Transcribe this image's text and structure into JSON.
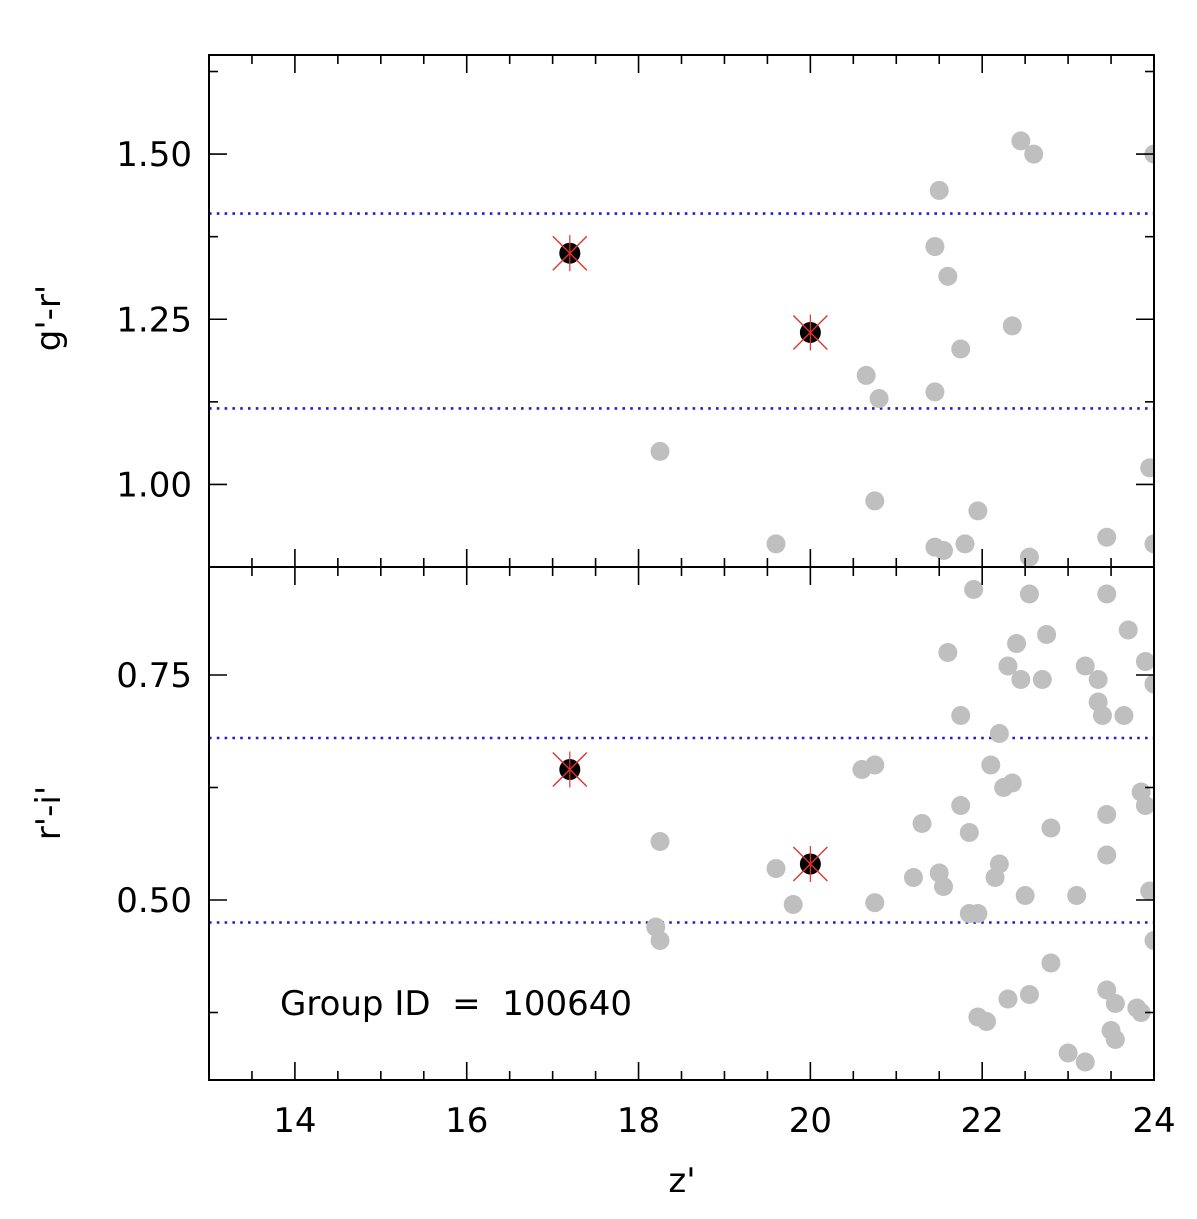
{
  "chart_data": [
    {
      "type": "scatter",
      "panel": "top",
      "ylabel": "g'-r'",
      "xlim": [
        13,
        24
      ],
      "ylim": [
        0.875,
        1.65
      ],
      "yticks": [
        1.0,
        1.25,
        1.5
      ],
      "ytick_labels": [
        "1.00",
        "1.25",
        "1.50"
      ],
      "hlines": [
        1.41,
        1.115
      ],
      "hline_color": "#1f1fd0",
      "background_color": "#bfbfbf",
      "member_color": "#000000",
      "cross_color": "#e8302a",
      "background_points": [
        [
          18.25,
          1.05
        ],
        [
          19.6,
          0.91
        ],
        [
          20.65,
          1.165
        ],
        [
          20.75,
          0.975
        ],
        [
          20.8,
          1.13
        ],
        [
          21.45,
          1.36
        ],
        [
          21.45,
          1.14
        ],
        [
          21.45,
          0.905
        ],
        [
          21.5,
          1.445
        ],
        [
          21.55,
          0.9
        ],
        [
          21.6,
          1.315
        ],
        [
          21.75,
          1.205
        ],
        [
          21.8,
          0.91
        ],
        [
          21.95,
          0.96
        ],
        [
          22.35,
          1.24
        ],
        [
          22.45,
          1.52
        ],
        [
          22.55,
          0.89
        ],
        [
          22.6,
          1.5
        ],
        [
          23.45,
          0.92
        ],
        [
          23.95,
          1.025
        ],
        [
          24.0,
          1.5
        ],
        [
          24.0,
          0.91
        ]
      ],
      "members": [
        [
          17.2,
          1.35
        ],
        [
          20.0,
          1.23
        ]
      ]
    },
    {
      "type": "scatter",
      "panel": "bottom",
      "ylabel": "r'-i'",
      "xlabel": "z'",
      "xlim": [
        13,
        24
      ],
      "xticks": [
        14,
        16,
        18,
        20,
        22,
        24
      ],
      "xtick_labels": [
        "14",
        "16",
        "18",
        "20",
        "22",
        "24"
      ],
      "ylim": [
        0.3,
        0.87
      ],
      "yticks": [
        0.5,
        0.75
      ],
      "ytick_labels": [
        "0.50",
        "0.75"
      ],
      "hlines": [
        0.68,
        0.475
      ],
      "hline_color": "#1f1fd0",
      "background_color": "#bfbfbf",
      "member_color": "#000000",
      "cross_color": "#e8302a",
      "annotation": "Group ID  =  100640",
      "background_points": [
        [
          18.2,
          0.47
        ],
        [
          18.25,
          0.455
        ],
        [
          18.25,
          0.565
        ],
        [
          19.6,
          0.535
        ],
        [
          19.8,
          0.495
        ],
        [
          20.6,
          0.645
        ],
        [
          20.75,
          0.65
        ],
        [
          20.75,
          0.497
        ],
        [
          21.2,
          0.525
        ],
        [
          21.3,
          0.585
        ],
        [
          21.5,
          0.53
        ],
        [
          21.55,
          0.515
        ],
        [
          21.6,
          0.775
        ],
        [
          21.75,
          0.605
        ],
        [
          21.75,
          0.705
        ],
        [
          21.85,
          0.575
        ],
        [
          21.85,
          0.485
        ],
        [
          21.9,
          0.845
        ],
        [
          21.95,
          0.485
        ],
        [
          21.95,
          0.37
        ],
        [
          22.05,
          0.365
        ],
        [
          22.1,
          0.65
        ],
        [
          22.15,
          0.525
        ],
        [
          22.2,
          0.54
        ],
        [
          22.2,
          0.685
        ],
        [
          22.25,
          0.625
        ],
        [
          22.3,
          0.76
        ],
        [
          22.3,
          0.39
        ],
        [
          22.35,
          0.63
        ],
        [
          22.4,
          0.785
        ],
        [
          22.45,
          0.745
        ],
        [
          22.5,
          0.505
        ],
        [
          22.55,
          0.84
        ],
        [
          22.55,
          0.395
        ],
        [
          22.7,
          0.745
        ],
        [
          22.75,
          0.795
        ],
        [
          22.8,
          0.58
        ],
        [
          22.8,
          0.43
        ],
        [
          23.0,
          0.33
        ],
        [
          23.1,
          0.505
        ],
        [
          23.2,
          0.32
        ],
        [
          23.2,
          0.76
        ],
        [
          23.35,
          0.745
        ],
        [
          23.35,
          0.72
        ],
        [
          23.4,
          0.705
        ],
        [
          23.45,
          0.84
        ],
        [
          23.45,
          0.595
        ],
        [
          23.45,
          0.55
        ],
        [
          23.45,
          0.4
        ],
        [
          23.5,
          0.355
        ],
        [
          23.55,
          0.385
        ],
        [
          23.55,
          0.345
        ],
        [
          23.65,
          0.705
        ],
        [
          23.7,
          0.8
        ],
        [
          23.8,
          0.38
        ],
        [
          23.85,
          0.375
        ],
        [
          23.85,
          0.62
        ],
        [
          23.9,
          0.765
        ],
        [
          23.9,
          0.605
        ],
        [
          23.95,
          0.51
        ],
        [
          24.0,
          0.74
        ],
        [
          24.0,
          0.455
        ]
      ],
      "members": [
        [
          17.2,
          0.645
        ],
        [
          20.0,
          0.54
        ]
      ]
    }
  ]
}
